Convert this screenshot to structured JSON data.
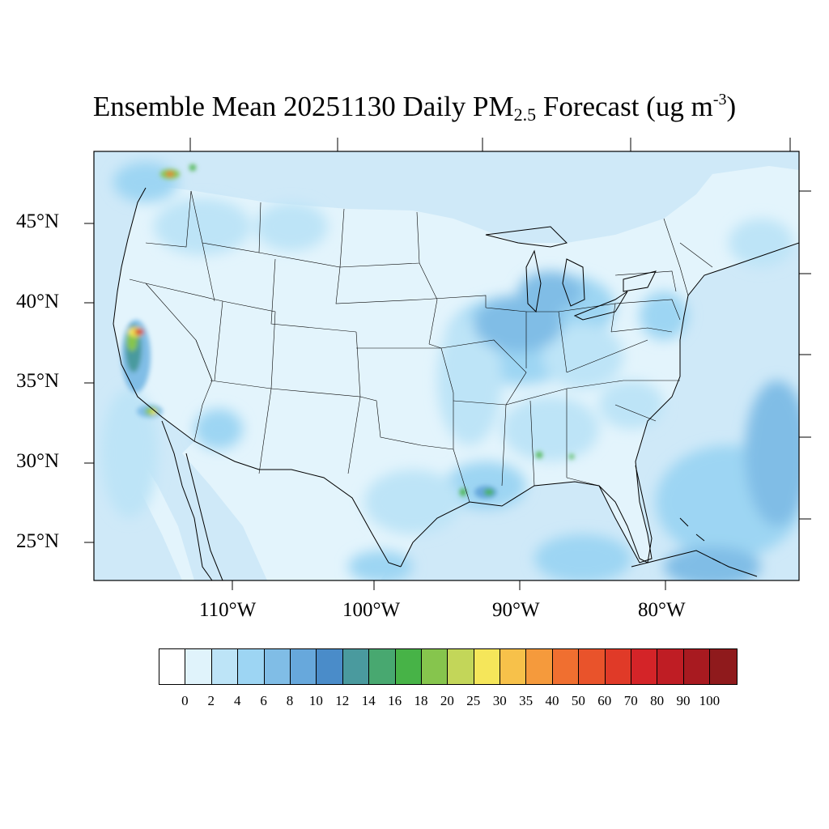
{
  "title": {
    "main": "Ensemble Mean 20251130 Daily PM",
    "sub": "2.5",
    "after": " Forecast (ug m",
    "sup": "-3",
    "close": ")"
  },
  "map": {
    "region": "Contiguous United States",
    "projection": "lambert-conformal",
    "ocean_color": "#cfe9f8",
    "lat_labels": [
      "45°N",
      "40°N",
      "35°N",
      "30°N",
      "25°N"
    ],
    "lon_labels": [
      "110°W",
      "100°W",
      "90°W",
      "80°W"
    ]
  },
  "legend": {
    "levels": [
      "0",
      "2",
      "4",
      "6",
      "8",
      "10",
      "12",
      "14",
      "16",
      "18",
      "20",
      "25",
      "30",
      "35",
      "40",
      "50",
      "60",
      "70",
      "80",
      "90",
      "100"
    ],
    "colors": [
      "#ffffff",
      "#e0f3fb",
      "#bde4f7",
      "#9dd5f3",
      "#80bde6",
      "#67a8dc",
      "#4a8cc9",
      "#4a9a9e",
      "#48a870",
      "#47b347",
      "#86c54d",
      "#c3d659",
      "#f5e65a",
      "#f7c14a",
      "#f59a3c",
      "#f06f30",
      "#e9532b",
      "#e03a28",
      "#d42428",
      "#bf1d24",
      "#a81a20",
      "#8f1a1c"
    ]
  }
}
